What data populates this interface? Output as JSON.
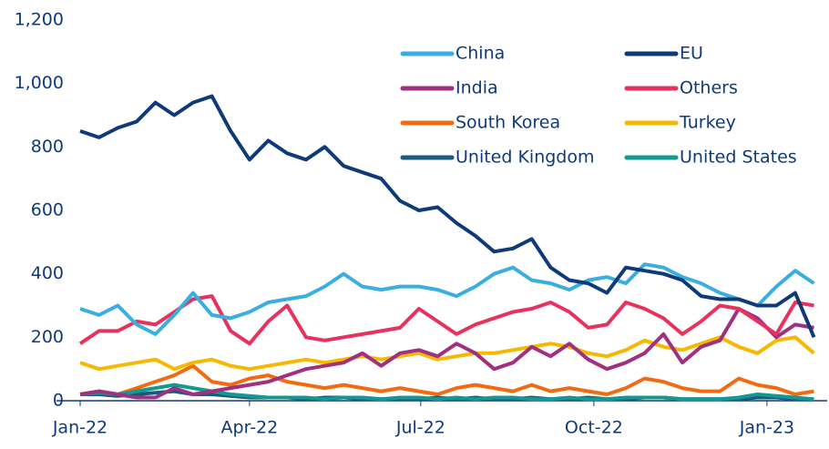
{
  "chart_data": {
    "type": "line",
    "x": [
      0,
      10,
      20,
      30,
      40,
      50,
      60,
      70,
      80,
      90,
      100,
      110,
      120,
      130,
      140,
      150,
      160,
      170,
      180,
      190,
      200,
      210,
      220,
      230,
      240,
      250,
      260,
      270,
      280,
      290,
      300,
      310,
      320,
      330,
      340,
      350,
      360,
      370,
      380,
      390
    ],
    "xlim": [
      0,
      397
    ],
    "xticks": [
      {
        "value": 0,
        "label": "Jan-22"
      },
      {
        "value": 90,
        "label": "Apr-22"
      },
      {
        "value": 181,
        "label": "Jul-22"
      },
      {
        "value": 273,
        "label": "Oct-22"
      },
      {
        "value": 365,
        "label": "Jan-23"
      }
    ],
    "ylim": [
      0,
      1200
    ],
    "yticks": [
      0,
      200,
      400,
      600,
      800,
      {
        "value": 1000,
        "label": "1,000"
      },
      {
        "value": 1200,
        "label": "1,200"
      }
    ],
    "grid": false,
    "legend": "top-right",
    "series": [
      {
        "name": "China",
        "color": "#3aaee0",
        "values": [
          290,
          270,
          300,
          240,
          210,
          270,
          340,
          270,
          260,
          280,
          310,
          320,
          330,
          360,
          400,
          360,
          350,
          360,
          360,
          350,
          330,
          360,
          400,
          420,
          380,
          370,
          350,
          380,
          390,
          370,
          430,
          420,
          390,
          370,
          340,
          320,
          300,
          360,
          410,
          370
        ]
      },
      {
        "name": "EU",
        "color": "#0f3a7a",
        "values": [
          850,
          830,
          860,
          880,
          940,
          900,
          940,
          960,
          850,
          760,
          820,
          780,
          760,
          800,
          740,
          720,
          700,
          630,
          600,
          610,
          560,
          520,
          470,
          480,
          510,
          420,
          380,
          370,
          340,
          420,
          410,
          400,
          380,
          330,
          320,
          320,
          300,
          300,
          340,
          200
        ]
      },
      {
        "name": "India",
        "color": "#a03080",
        "values": [
          20,
          30,
          20,
          10,
          10,
          40,
          20,
          30,
          40,
          50,
          60,
          80,
          100,
          110,
          120,
          150,
          110,
          150,
          160,
          140,
          180,
          150,
          100,
          120,
          170,
          140,
          180,
          130,
          100,
          120,
          150,
          210,
          120,
          170,
          190,
          290,
          260,
          200,
          240,
          230
        ]
      },
      {
        "name": "Others",
        "color": "#e8325e",
        "values": [
          180,
          220,
          220,
          250,
          240,
          280,
          320,
          330,
          220,
          180,
          250,
          300,
          200,
          190,
          200,
          210,
          220,
          230,
          290,
          250,
          210,
          240,
          260,
          280,
          290,
          310,
          280,
          230,
          240,
          310,
          290,
          260,
          210,
          250,
          300,
          290,
          250,
          210,
          310,
          300
        ]
      },
      {
        "name": "South Korea",
        "color": "#f26b12",
        "values": [
          20,
          30,
          20,
          40,
          60,
          80,
          110,
          60,
          50,
          70,
          80,
          60,
          50,
          40,
          50,
          40,
          30,
          40,
          30,
          20,
          40,
          50,
          40,
          30,
          50,
          30,
          40,
          30,
          20,
          40,
          70,
          60,
          40,
          30,
          30,
          70,
          50,
          40,
          20,
          30
        ]
      },
      {
        "name": "Turkey",
        "color": "#f6b800",
        "values": [
          120,
          100,
          110,
          120,
          130,
          100,
          120,
          130,
          110,
          100,
          110,
          120,
          130,
          120,
          130,
          140,
          130,
          140,
          150,
          130,
          140,
          150,
          150,
          160,
          170,
          180,
          170,
          150,
          140,
          160,
          190,
          170,
          160,
          180,
          200,
          170,
          150,
          190,
          200,
          150
        ]
      },
      {
        "name": "United Kingdom",
        "color": "#1b5a7a",
        "values": [
          20,
          20,
          15,
          20,
          25,
          30,
          20,
          20,
          15,
          10,
          10,
          10,
          5,
          10,
          10,
          5,
          5,
          5,
          5,
          10,
          5,
          10,
          5,
          5,
          10,
          5,
          5,
          10,
          5,
          5,
          10,
          10,
          5,
          5,
          5,
          5,
          10,
          10,
          5,
          5
        ]
      },
      {
        "name": "United States",
        "color": "#139a90",
        "values": [
          20,
          25,
          20,
          30,
          40,
          50,
          40,
          30,
          20,
          15,
          10,
          10,
          10,
          5,
          10,
          10,
          5,
          10,
          10,
          5,
          10,
          5,
          10,
          10,
          5,
          5,
          10,
          5,
          5,
          10,
          10,
          10,
          5,
          5,
          5,
          10,
          20,
          15,
          10,
          5
        ]
      }
    ]
  }
}
